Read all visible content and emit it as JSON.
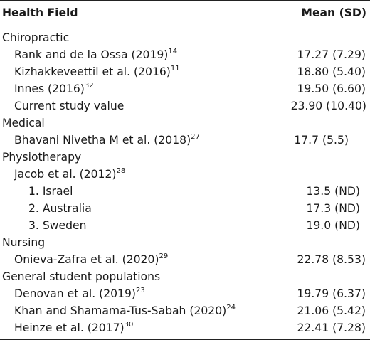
{
  "header": {
    "col1": "Health Field",
    "col2": "Mean (SD)"
  },
  "rows": [
    {
      "name": "Chiropractic",
      "ref": "",
      "value": ""
    },
    {
      "name": "Rank and de la Ossa (2019)",
      "ref": "14",
      "value": "17.27 (7.29)"
    },
    {
      "name": "Kizhakkeveettil et al. (2016)",
      "ref": "11",
      "value": "18.80 (5.40)"
    },
    {
      "name": "Innes (2016)",
      "ref": "32",
      "value": "19.50 (6.60)"
    },
    {
      "name": "Current study value",
      "ref": "",
      "value": "23.90 (10.40)"
    },
    {
      "name": "Medical",
      "ref": "",
      "value": ""
    },
    {
      "name": "Bhavani Nivetha M et al. (2018)",
      "ref": "27",
      "value": "17.7 (5.5)"
    },
    {
      "name": "Physiotherapy",
      "ref": "",
      "value": ""
    },
    {
      "name": "Jacob et al. (2012)",
      "ref": "28",
      "value": ""
    },
    {
      "name": "1. Israel",
      "ref": "",
      "value": "13.5 (ND)"
    },
    {
      "name": "2. Australia",
      "ref": "",
      "value": "17.3 (ND)"
    },
    {
      "name": "3. Sweden",
      "ref": "",
      "value": "19.0 (ND)"
    },
    {
      "name": "Nursing",
      "ref": "",
      "value": ""
    },
    {
      "name": "Onieva-Zafra et al. (2020)",
      "ref": "29",
      "value": "22.78 (8.53)"
    },
    {
      "name": "General student populations",
      "ref": "",
      "value": ""
    },
    {
      "name": "Denovan et al. (2019)",
      "ref": "23",
      "value": "19.79 (6.37)"
    },
    {
      "name": "Khan and Shamama-Tus-Sabah (2020)",
      "ref": "24",
      "value": "21.06 (5.42)"
    },
    {
      "name": "Heinze et al. (2017)",
      "ref": "30",
      "value": "22.41 (7.28)"
    }
  ]
}
